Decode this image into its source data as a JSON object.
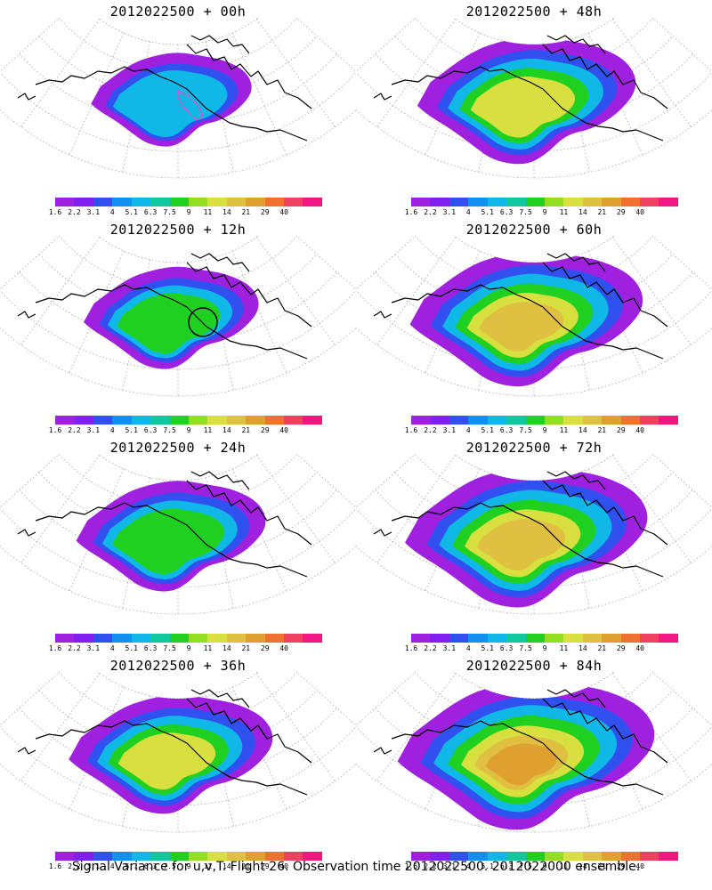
{
  "panels": [
    {
      "title": "2012022500 + 00h",
      "col": 0,
      "row": 0,
      "spread": 0.0,
      "marker": "pink-outline"
    },
    {
      "title": "2012022500 + 48h",
      "col": 1,
      "row": 0,
      "spread": 0.6,
      "marker": ""
    },
    {
      "title": "2012022500 + 12h",
      "col": 0,
      "row": 1,
      "spread": 0.15,
      "marker": "circle"
    },
    {
      "title": "2012022500 + 60h",
      "col": 1,
      "row": 1,
      "spread": 0.75,
      "marker": ""
    },
    {
      "title": "2012022500 + 24h",
      "col": 0,
      "row": 2,
      "spread": 0.3,
      "marker": ""
    },
    {
      "title": "2012022500 + 72h",
      "col": 1,
      "row": 2,
      "spread": 0.85,
      "marker": ""
    },
    {
      "title": "2012022500 + 36h",
      "col": 0,
      "row": 3,
      "spread": 0.45,
      "marker": ""
    },
    {
      "title": "2012022500 + 84h",
      "col": 1,
      "row": 3,
      "spread": 1.0,
      "marker": ""
    }
  ],
  "colorbar": {
    "labels": [
      "1.6",
      "2.2",
      "3.1",
      "4",
      "5.1",
      "6.3",
      "7.5",
      "9",
      "11",
      "14",
      "21",
      "29",
      "40"
    ],
    "colors": [
      "#a020e0",
      "#8020f0",
      "#3050f0",
      "#1090f0",
      "#10b8e8",
      "#10c8a0",
      "#20d020",
      "#90e020",
      "#d8e040",
      "#e0c040",
      "#e0a030",
      "#f07030",
      "#f04060",
      "#f01880"
    ]
  },
  "caption": "Signal Variance for u,v,T. Flight 26. Observation time 2012022500. 2012022000 ensemble."
}
